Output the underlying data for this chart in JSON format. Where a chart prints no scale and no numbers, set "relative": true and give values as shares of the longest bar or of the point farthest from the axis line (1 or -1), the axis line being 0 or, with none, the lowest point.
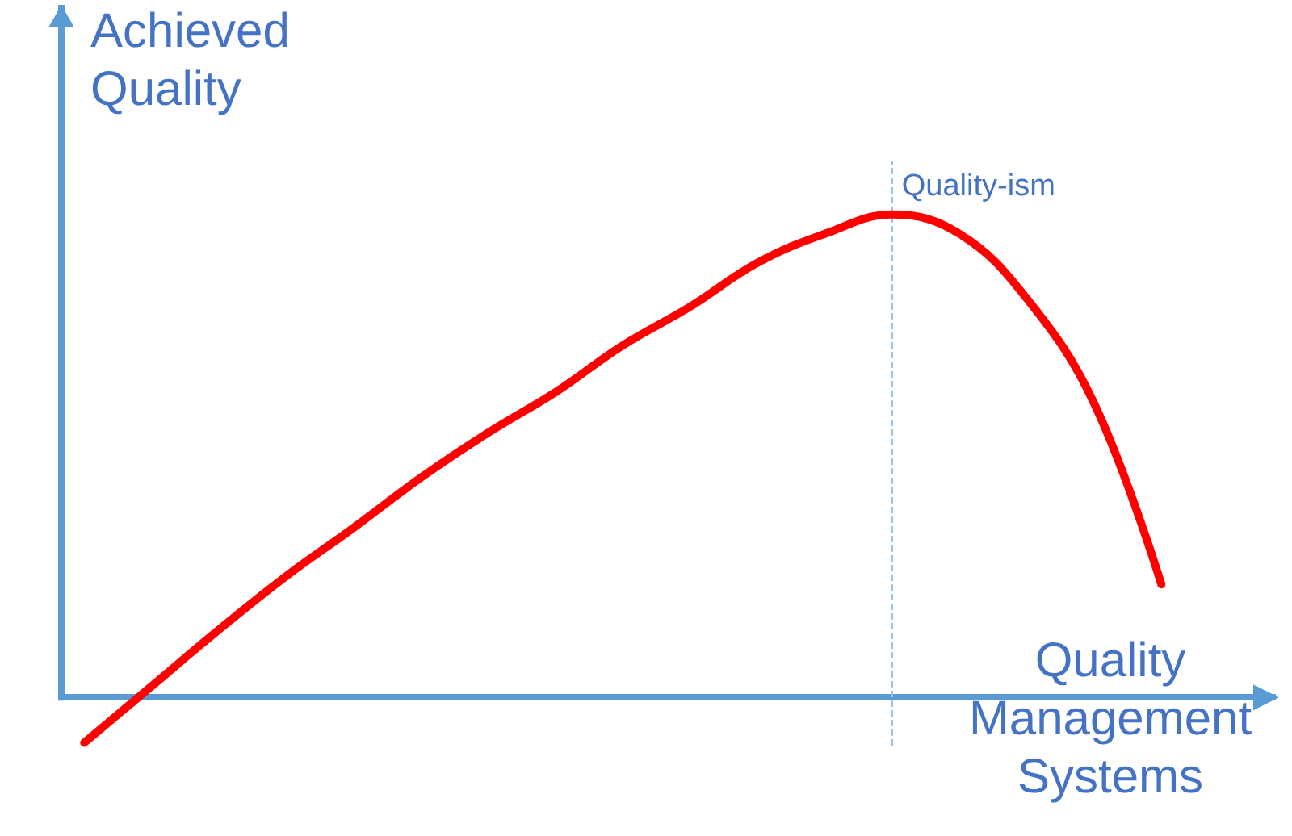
{
  "chart_data": {
    "type": "line",
    "relative": true,
    "xlabel": "Quality Management Systems",
    "ylabel": "Achieved Quality",
    "categories": [
      null,
      null,
      null,
      null,
      null,
      null,
      null,
      null,
      null,
      null,
      null,
      null,
      null,
      null,
      null,
      null,
      null
    ],
    "series": [
      {
        "color": "#ff0000",
        "values": [
          -0.094,
          0.023,
          0.14,
          0.251,
          0.351,
          0.455,
          0.548,
          0.632,
          0.729,
          0.809,
          0.9,
          0.96,
          1,
          0.96,
          0.826,
          0.609,
          0.234
        ]
      }
    ],
    "annotations": [
      "Quality-ism"
    ],
    "ref_lines": [
      {
        "axis": "y",
        "value": 0,
        "color": "#5b9bd5",
        "line_style": "solid"
      }
    ],
    "marker": "none",
    "grid": false
  }
}
